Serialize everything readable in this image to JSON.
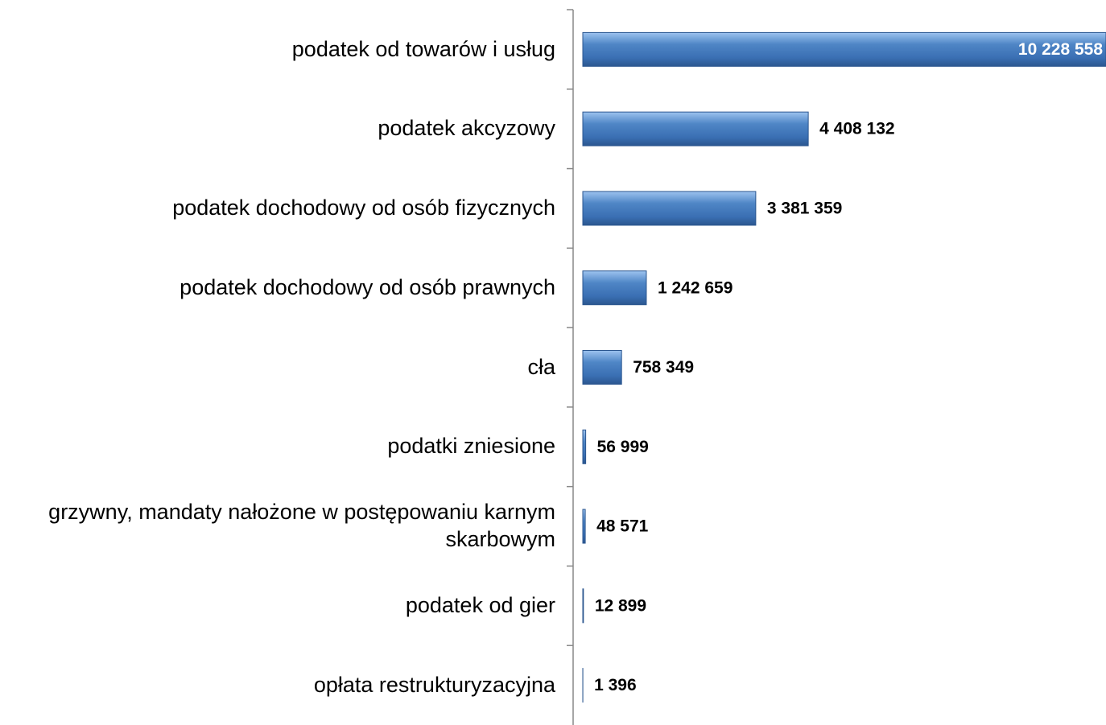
{
  "chart_data": {
    "type": "bar",
    "orientation": "horizontal",
    "categories": [
      "podatek od towarów i usług",
      "podatek akcyzowy",
      "podatek dochodowy od osób fizycznych",
      "podatek dochodowy od osób prawnych",
      "cła",
      "podatki zniesione",
      "grzywny, mandaty nałożone w postępowaniu karnym skarbowym",
      "podatek od gier",
      "opłata restrukturyzacyjna"
    ],
    "values": [
      10228558,
      4408132,
      3381359,
      1242659,
      758349,
      56999,
      48571,
      12899,
      1396
    ],
    "value_labels": [
      "10 228 558",
      "4 408 132",
      "3 381 359",
      "1 242 659",
      "758 349",
      "56 999",
      "48 571",
      "12 899",
      "1 396"
    ],
    "color": "#4a7ebb"
  }
}
